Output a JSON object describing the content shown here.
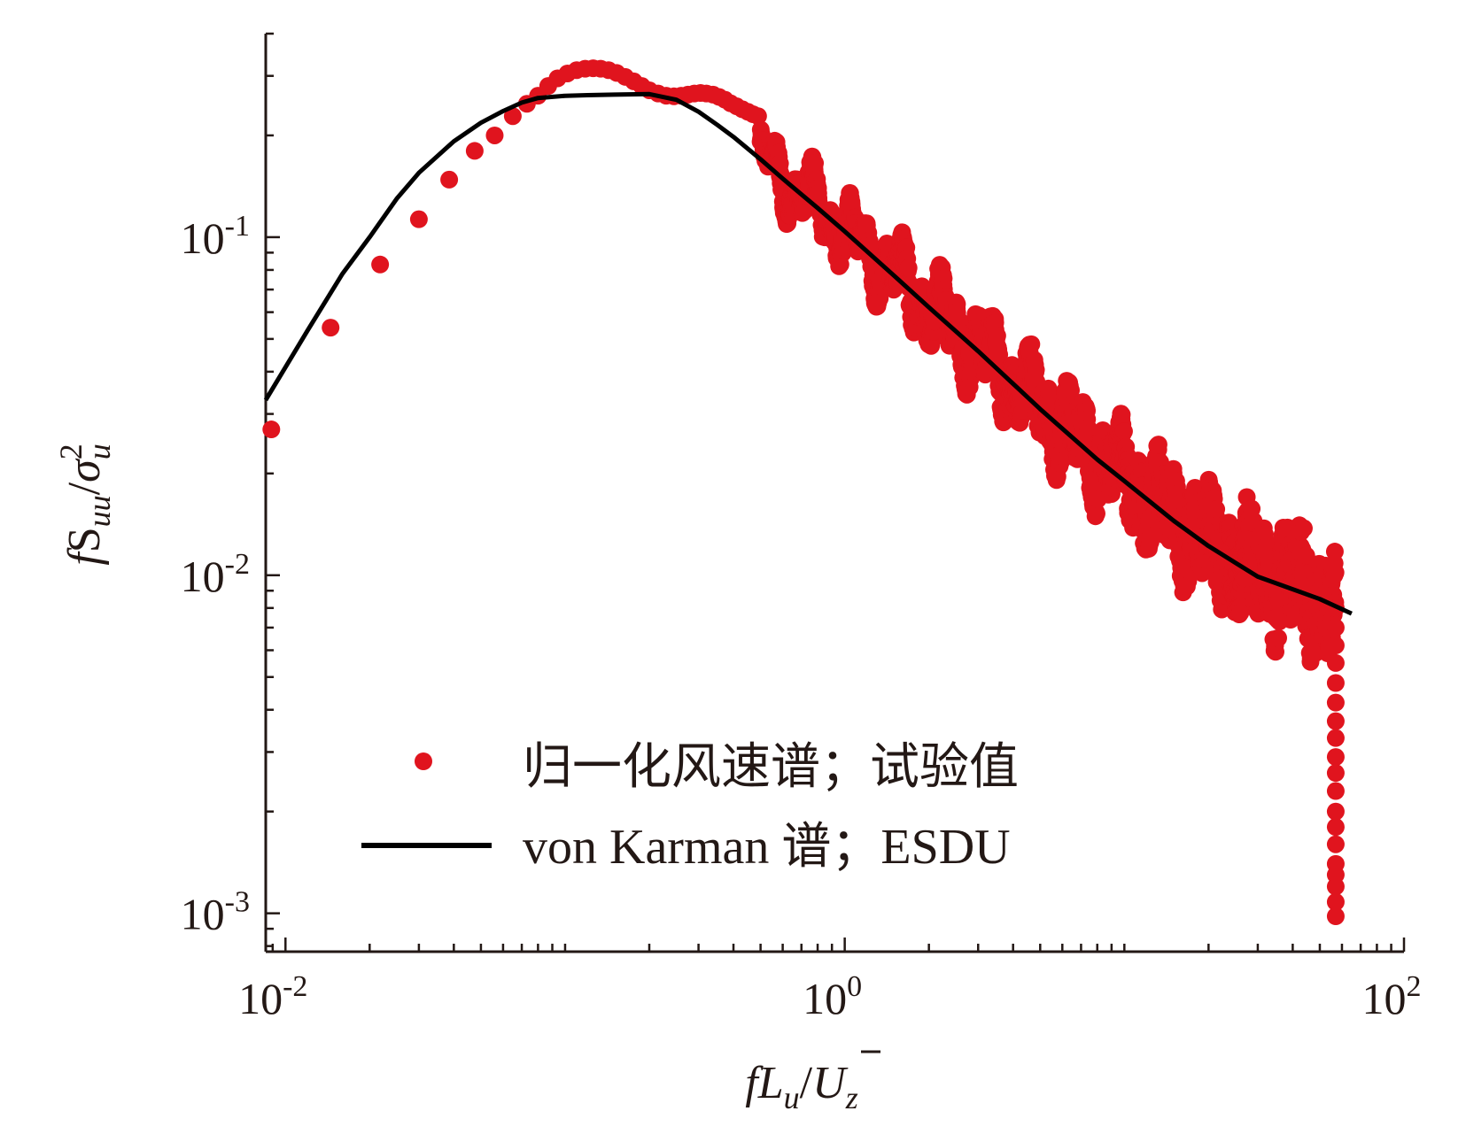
{
  "chart_data": {
    "type": "scatter",
    "x_scale": "log",
    "y_scale": "log",
    "xlim": [
      0.0085,
      100
    ],
    "ylim": [
      0.00077,
      0.4
    ],
    "grid": false,
    "legend_placement": "bottom-center",
    "x_ticks": [
      {
        "value": 0.01,
        "base": "10",
        "exp": "-2"
      },
      {
        "value": 1,
        "base": "10",
        "exp": "0"
      },
      {
        "value": 100,
        "base": "10",
        "exp": "2"
      }
    ],
    "y_ticks": [
      {
        "value": 0.1,
        "base": "10",
        "exp": "-1"
      },
      {
        "value": 0.01,
        "base": "10",
        "exp": "-2"
      },
      {
        "value": 0.001,
        "base": "10",
        "exp": "-3"
      }
    ],
    "xlabel": {
      "f": "f",
      "L": "L",
      "u": "u",
      "slash": "/",
      "U": "U",
      "z": "z"
    },
    "ylabel": {
      "f": "f",
      "S": "S",
      "uu": "uu",
      "slash": "/",
      "sigma": "σ",
      "u": "u",
      "sq": "2"
    },
    "series": [
      {
        "name": "归一化风速谱；试验值",
        "kind": "scatter",
        "color": "#e0141e",
        "x": [
          0.0089,
          0.0145,
          0.0218,
          0.03,
          0.0385,
          0.0475,
          0.056,
          0.065,
          0.073,
          0.08,
          0.087,
          0.094,
          0.102,
          0.11,
          0.118,
          0.126,
          0.134,
          0.143,
          0.153,
          0.164,
          0.176,
          0.188,
          0.2,
          0.215,
          0.23,
          0.245,
          0.26,
          0.275,
          0.29,
          0.305,
          0.32,
          0.338,
          0.355,
          0.373,
          0.39,
          0.41,
          0.43,
          0.45,
          0.47,
          0.49
        ],
        "y": [
          0.027,
          0.054,
          0.083,
          0.113,
          0.148,
          0.18,
          0.2,
          0.228,
          0.248,
          0.262,
          0.28,
          0.295,
          0.305,
          0.312,
          0.315,
          0.316,
          0.315,
          0.312,
          0.306,
          0.298,
          0.289,
          0.28,
          0.272,
          0.266,
          0.262,
          0.261,
          0.262,
          0.264,
          0.266,
          0.267,
          0.266,
          0.264,
          0.26,
          0.255,
          0.249,
          0.244,
          0.239,
          0.235,
          0.231,
          0.228
        ],
        "fluctuating_from_x": 0.5,
        "fluctuating_to_x": 57,
        "dropoff_x": 57,
        "dropoff_y": [
          0.008,
          0.007,
          0.0062,
          0.0055,
          0.0048,
          0.0042,
          0.0037,
          0.0033,
          0.0029,
          0.0026,
          0.0023,
          0.002,
          0.0018,
          0.0016,
          0.0014,
          0.0013,
          0.0012,
          0.00108,
          0.00098
        ]
      },
      {
        "name": "von Karman 谱；ESDU",
        "kind": "line",
        "color": "#000000",
        "x": [
          0.0085,
          0.012,
          0.016,
          0.02,
          0.025,
          0.03,
          0.04,
          0.05,
          0.06,
          0.07,
          0.08,
          0.1,
          0.12,
          0.15,
          0.2,
          0.25,
          0.3,
          0.35,
          0.4,
          0.5,
          0.6,
          0.8,
          1.0,
          1.5,
          2,
          3,
          5,
          8,
          10,
          15,
          20,
          30,
          50,
          65
        ],
        "y": [
          0.033,
          0.053,
          0.078,
          0.1,
          0.13,
          0.155,
          0.192,
          0.218,
          0.236,
          0.25,
          0.258,
          0.262,
          0.263,
          0.264,
          0.265,
          0.255,
          0.235,
          0.215,
          0.198,
          0.17,
          0.149,
          0.122,
          0.104,
          0.077,
          0.062,
          0.046,
          0.031,
          0.022,
          0.019,
          0.0145,
          0.0122,
          0.0099,
          0.0085,
          0.0077
        ]
      }
    ],
    "legend": [
      {
        "label": "归一化风速谱；试验值",
        "symbol": "dot",
        "color": "#e0141e"
      },
      {
        "label": "von Karman 谱；ESDU",
        "symbol": "line",
        "color": "#000000"
      }
    ]
  }
}
